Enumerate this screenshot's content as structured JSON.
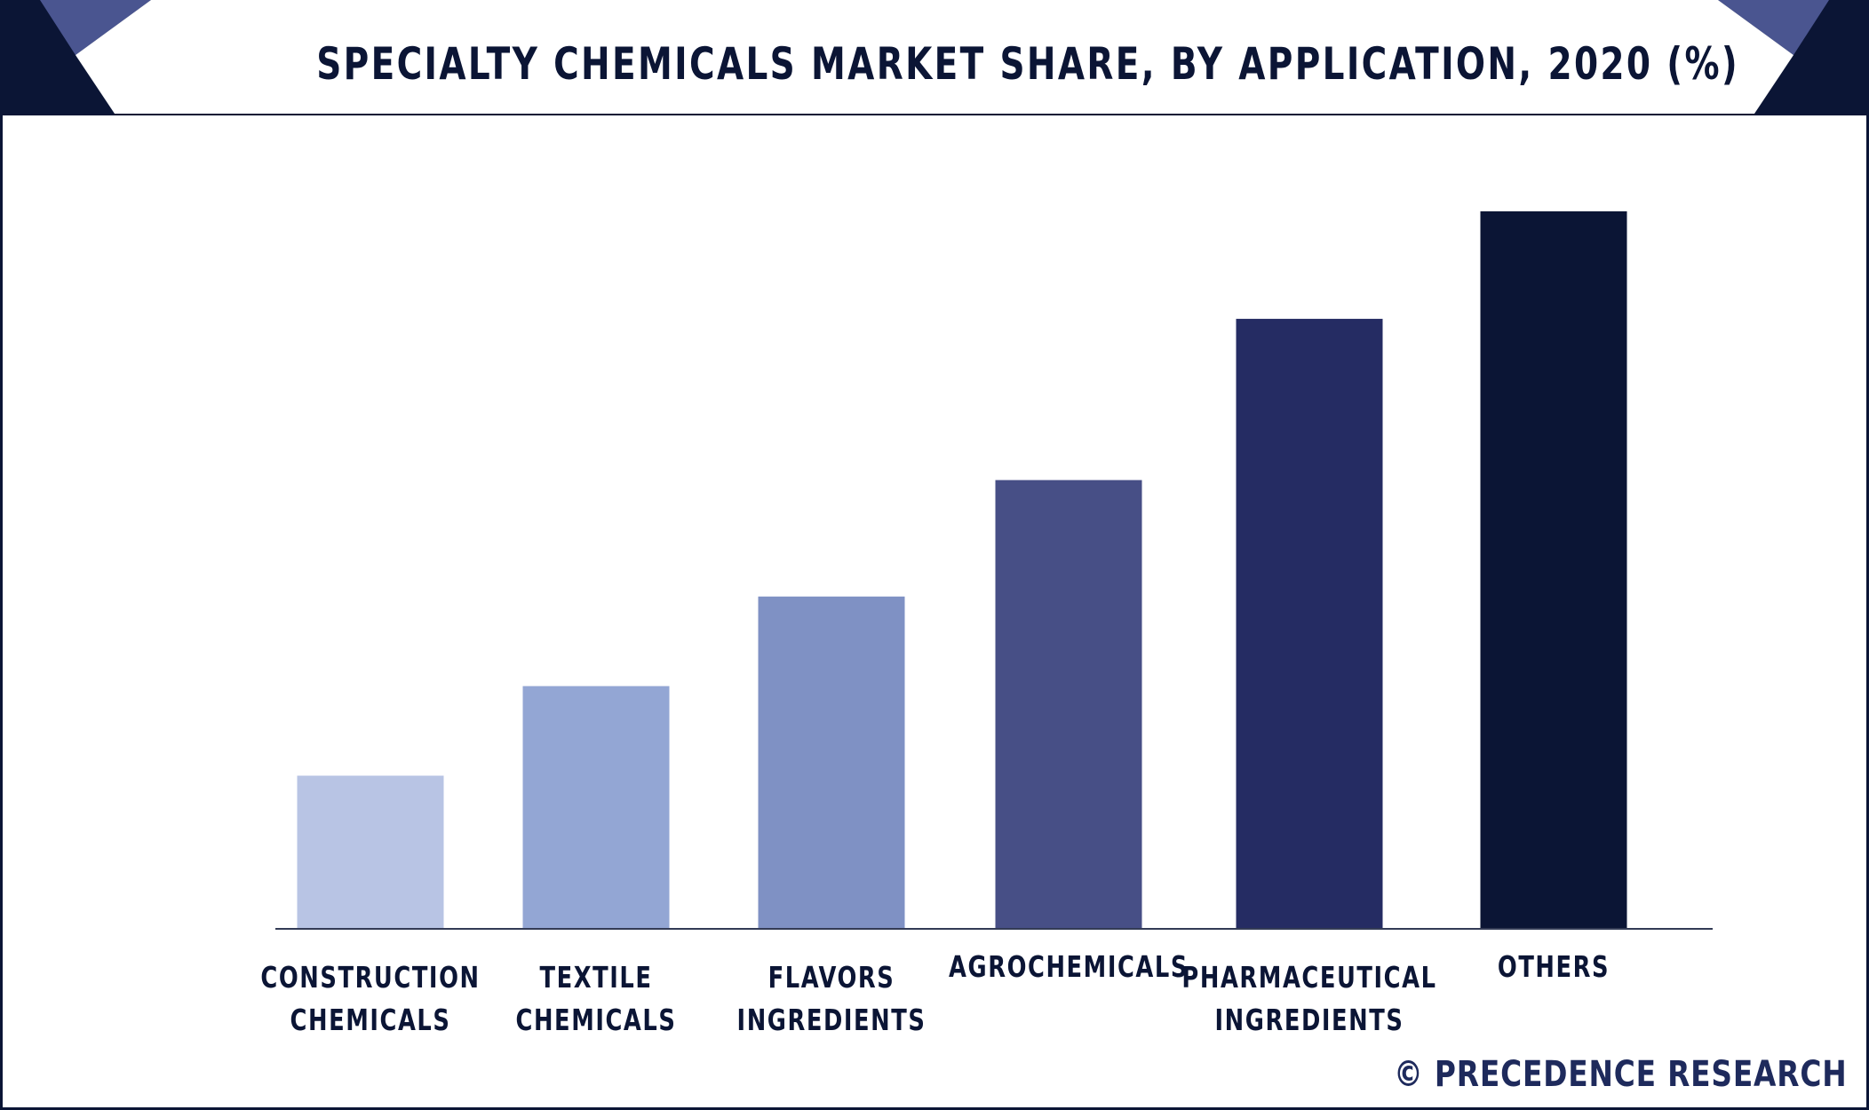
{
  "header": {
    "title": "SPECIALTY CHEMICALS MARKET SHARE, BY APPLICATION, 2020 (%)"
  },
  "brand": {
    "text": "© PRECEDENCE RESEARCH"
  },
  "colors": {
    "navy": "#0b1535",
    "accent": "#4a5590",
    "axis": "#333b55"
  },
  "chart_data": {
    "type": "bar",
    "title": "SPECIALTY CHEMICALS MARKET SHARE, BY APPLICATION, 2020 (%)",
    "xlabel": "",
    "ylabel": "",
    "categories": [
      [
        "CONSTRUCTION",
        "CHEMICALS"
      ],
      [
        "TEXTILE",
        "CHEMICALS"
      ],
      [
        "FLAVORS",
        "INGREDIENTS"
      ],
      [
        "AGROCHEMICALS"
      ],
      [
        "PHARMACEUTICAL",
        "INGREDIENTS"
      ],
      [
        "OTHERS"
      ]
    ],
    "values": [
      8.5,
      13.5,
      18.5,
      25,
      34,
      40
    ],
    "colors": [
      "#b8c4e4",
      "#93a6d4",
      "#7f91c4",
      "#474f86",
      "#252c63",
      "#0b1535"
    ],
    "ylim": [
      0,
      40
    ],
    "grid": false,
    "legend": "none"
  }
}
